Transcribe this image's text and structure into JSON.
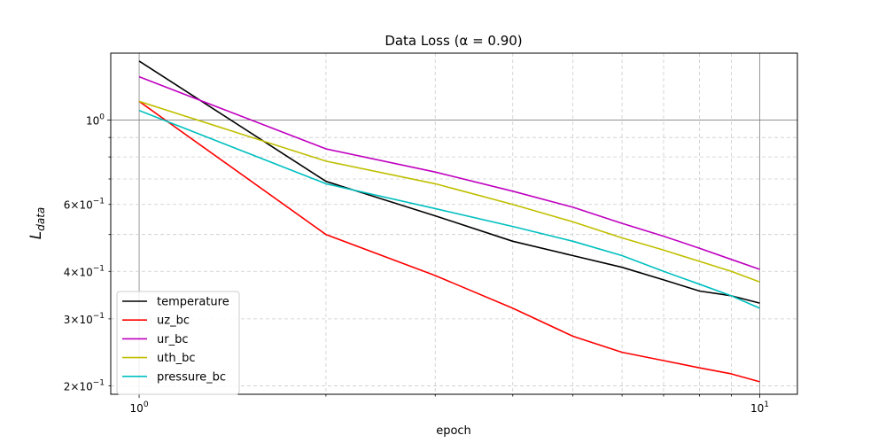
{
  "chart_data": {
    "type": "line",
    "title": "Data Loss (α = 0.90)",
    "xlabel": "epoch",
    "ylabel": "L_data",
    "xscale": "log",
    "yscale": "log",
    "xlim": [
      0.9,
      11.5
    ],
    "ylim": [
      0.19,
      1.5
    ],
    "grid": true,
    "legend": "lower-left",
    "x": [
      1,
      2,
      3,
      4,
      5,
      6,
      7,
      8,
      9,
      10
    ],
    "series": [
      {
        "name": "temperature",
        "color": "#000000",
        "values": [
          1.43,
          0.69,
          0.56,
          0.48,
          0.44,
          0.41,
          0.38,
          0.355,
          0.345,
          0.33
        ]
      },
      {
        "name": "uz_bc",
        "color": "#ff0000",
        "values": [
          1.12,
          0.5,
          0.39,
          0.32,
          0.27,
          0.245,
          0.233,
          0.223,
          0.215,
          0.205
        ]
      },
      {
        "name": "ur_bc",
        "color": "#bf00bf",
        "values": [
          1.3,
          0.84,
          0.73,
          0.65,
          0.59,
          0.535,
          0.495,
          0.46,
          0.43,
          0.405
        ]
      },
      {
        "name": "uth_bc",
        "color": "#bfbf00",
        "values": [
          1.12,
          0.78,
          0.68,
          0.6,
          0.54,
          0.49,
          0.455,
          0.425,
          0.4,
          0.375
        ]
      },
      {
        "name": "pressure_bc",
        "color": "#00bfbf",
        "values": [
          1.06,
          0.68,
          0.585,
          0.525,
          0.48,
          0.44,
          0.4,
          0.37,
          0.345,
          0.32
        ]
      }
    ],
    "xticks": {
      "major": [
        {
          "value": 1,
          "base": "10",
          "exp": "0"
        },
        {
          "value": 10,
          "base": "10",
          "exp": "1"
        }
      ]
    },
    "yticks": {
      "major": [
        {
          "value": 1,
          "mant": "",
          "base": "10",
          "exp": "0"
        }
      ],
      "minor": [
        {
          "value": 0.2,
          "mant": "2×",
          "base": "10",
          "exp": "−1"
        },
        {
          "value": 0.3,
          "mant": "3×",
          "base": "10",
          "exp": "−1"
        },
        {
          "value": 0.4,
          "mant": "4×",
          "base": "10",
          "exp": "−1"
        },
        {
          "value": 0.6,
          "mant": "6×",
          "base": "10",
          "exp": "−1"
        }
      ]
    },
    "ylabel_main": "L",
    "ylabel_sub": "data"
  }
}
